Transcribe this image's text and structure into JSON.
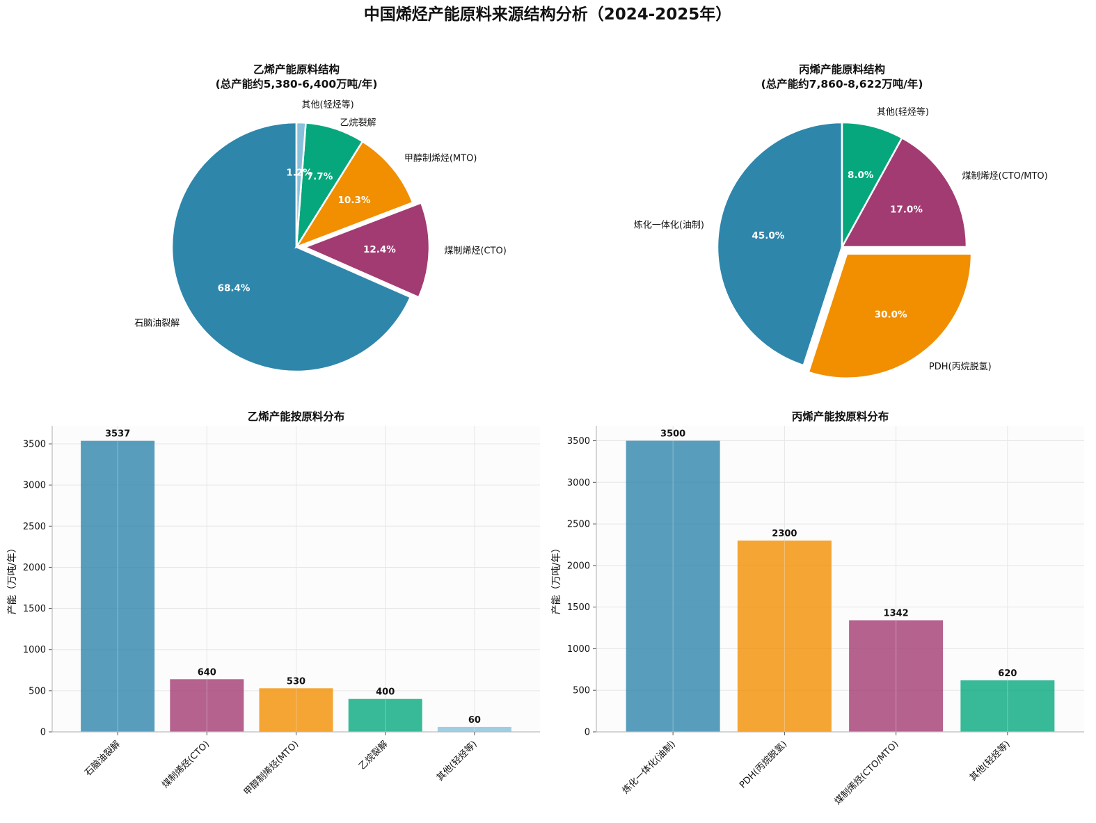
{
  "title": "中国烯烃产能原料来源结构分析（2024-2025年）",
  "colors": {
    "blue": "#2e86ab",
    "magenta": "#a23b72",
    "orange": "#f18f01",
    "green": "#06a77d",
    "lightblue": "#8ac0dc"
  },
  "chart_data": [
    {
      "type": "pie",
      "title_line1": "乙烯产能原料结构",
      "title_line2": "(总产能约5,380-6,400万吨/年)",
      "slices": [
        {
          "label": "石脑油裂解",
          "value": 68.4,
          "pct_label": "68.4%",
          "color": "#2e86ab",
          "explode": false
        },
        {
          "label": "煤制烯烃(CTO)",
          "value": 12.4,
          "pct_label": "12.4%",
          "color": "#a23b72",
          "explode": true
        },
        {
          "label": "甲醇制烯烃(MTO)",
          "value": 10.3,
          "pct_label": "10.3%",
          "color": "#f18f01",
          "explode": false
        },
        {
          "label": "乙烷裂解",
          "value": 7.7,
          "pct_label": "7.7%",
          "color": "#06a77d",
          "explode": false
        },
        {
          "label": "其他(轻烃等)",
          "value": 1.2,
          "pct_label": "1.2%",
          "color": "#8ac0dc",
          "explode": false
        }
      ]
    },
    {
      "type": "pie",
      "title_line1": "丙烯产能原料结构",
      "title_line2": "(总产能约7,860-8,622万吨/年)",
      "slices": [
        {
          "label": "炼化一体化(油制)",
          "value": 45.0,
          "pct_label": "45.0%",
          "color": "#2e86ab",
          "explode": false
        },
        {
          "label": "PDH(丙烷脱氢)",
          "value": 30.0,
          "pct_label": "30.0%",
          "color": "#f18f01",
          "explode": true
        },
        {
          "label": "煤制烯烃(CTO/MTO)",
          "value": 17.0,
          "pct_label": "17.0%",
          "color": "#a23b72",
          "explode": false
        },
        {
          "label": "其他(轻烃等)",
          "value": 8.0,
          "pct_label": "8.0%",
          "color": "#06a77d",
          "explode": false
        }
      ]
    },
    {
      "type": "bar",
      "title": "乙烯产能按原料分布",
      "ylabel": "产能（万吨/年）",
      "ylim": [
        0,
        3720
      ],
      "yticks": [
        0,
        500,
        1000,
        1500,
        2000,
        2500,
        3000,
        3500
      ],
      "categories": [
        "石脑油裂解",
        "煤制烯烃(CTO)",
        "甲醇制烯烃(MTO)",
        "乙烷裂解",
        "其他(轻烃等)"
      ],
      "values": [
        3537,
        640,
        530,
        400,
        60
      ],
      "colors": [
        "#2e86ab",
        "#a23b72",
        "#f18f01",
        "#06a77d",
        "#8ac0dc"
      ]
    },
    {
      "type": "bar",
      "title": "丙烯产能按原料分布",
      "ylabel": "产能（万吨/年）",
      "ylim": [
        0,
        3680
      ],
      "yticks": [
        0,
        500,
        1000,
        1500,
        2000,
        2500,
        3000,
        3500
      ],
      "categories": [
        "炼化一体化(油制)",
        "PDH(丙烷脱氢)",
        "煤制烯烃(CTO/MTO)",
        "其他(轻烃等)"
      ],
      "values": [
        3500,
        2300,
        1342,
        620
      ],
      "colors": [
        "#2e86ab",
        "#f18f01",
        "#a23b72",
        "#06a77d"
      ]
    }
  ]
}
